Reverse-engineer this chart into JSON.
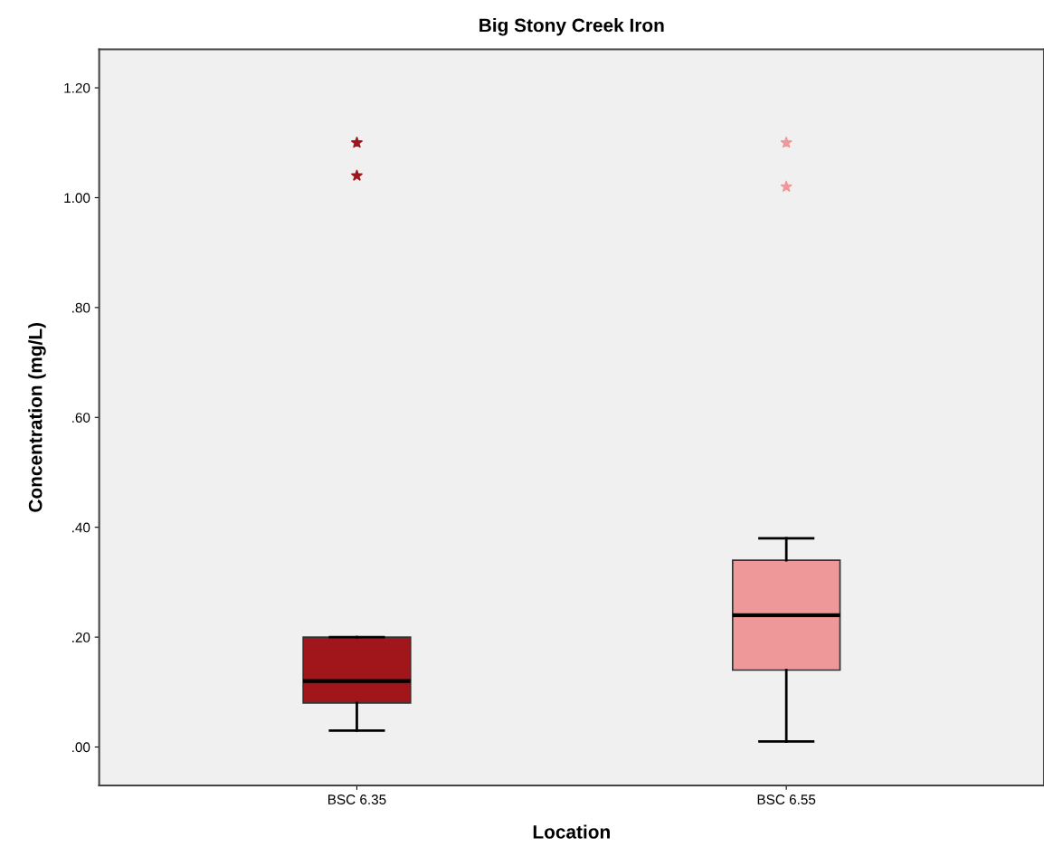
{
  "chart_data": {
    "type": "box",
    "title": "Big Stony Creek Iron",
    "xlabel": "Location",
    "ylabel": "Concentration (mg/L)",
    "categories": [
      "BSC 6.35",
      "BSC 6.55"
    ],
    "colors": [
      "#a0161a",
      "#ef9899"
    ],
    "boxes": [
      {
        "low": 0.03,
        "q1": 0.08,
        "median": 0.12,
        "q3": 0.2,
        "high": 0.2,
        "outliers": [
          1.04,
          1.1
        ]
      },
      {
        "low": 0.01,
        "q1": 0.14,
        "median": 0.24,
        "q3": 0.34,
        "high": 0.38,
        "outliers": [
          1.02,
          1.1
        ]
      }
    ],
    "marker": "star",
    "ylim": [
      -0.07,
      1.27
    ],
    "yticks": [
      {
        "value": 0,
        "label": ".00"
      },
      {
        "value": 0.2,
        "label": ".20"
      },
      {
        "value": 0.4,
        "label": ".40"
      },
      {
        "value": 0.6,
        "label": ".60"
      },
      {
        "value": 0.8,
        "label": ".80"
      },
      {
        "value": 1.0,
        "label": "1.00"
      },
      {
        "value": 1.2,
        "label": "1.20"
      }
    ],
    "grid": false
  }
}
